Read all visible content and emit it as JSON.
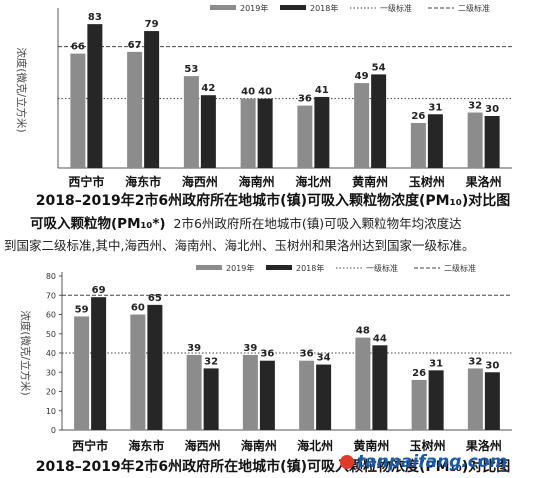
{
  "chart_data": [
    {
      "type": "bar",
      "categories": [
        "西宁市",
        "海东市",
        "海西州",
        "海南州",
        "海北州",
        "黄南州",
        "玉树州",
        "果洛州"
      ],
      "series": [
        {
          "name": "2019年",
          "values": [
            66,
            67,
            53,
            40,
            36,
            49,
            26,
            32
          ],
          "color": "#8c8c8c"
        },
        {
          "name": "2018年",
          "values": [
            83,
            79,
            42,
            40,
            41,
            54,
            31,
            30
          ],
          "color": "#262626"
        }
      ],
      "reference_lines": [
        {
          "name": "一级标准",
          "value": 40,
          "style": "dotted"
        },
        {
          "name": "二级标准",
          "value": 70,
          "style": "dashed"
        }
      ],
      "ylabel": "浓度(微克/立方米)",
      "ylim": [
        0,
        90
      ],
      "yticks": [],
      "grid": false,
      "legend": "top"
    },
    {
      "type": "bar",
      "categories": [
        "西宁市",
        "海东市",
        "海西州",
        "海南州",
        "海北州",
        "黄南州",
        "玉树州",
        "果洛州"
      ],
      "series": [
        {
          "name": "2019年",
          "values": [
            59,
            60,
            39,
            39,
            36,
            48,
            26,
            32
          ],
          "color": "#8c8c8c"
        },
        {
          "name": "2018年",
          "values": [
            69,
            65,
            32,
            36,
            34,
            44,
            31,
            30
          ],
          "color": "#262626"
        }
      ],
      "reference_lines": [
        {
          "name": "一级标准",
          "value": 40,
          "style": "dotted"
        },
        {
          "name": "二级标准",
          "value": 70,
          "style": "dashed"
        }
      ],
      "ylabel": "浓度(微克/立方米)",
      "ylim": [
        0,
        80
      ],
      "yticks": [
        0,
        10,
        20,
        30,
        40,
        50,
        60,
        70,
        80
      ],
      "grid": false,
      "legend": "top"
    }
  ],
  "captions": {
    "chart1": "2018–2019年2市6州政府所在地城市(镇)可吸入颗粒物浓度(PM₁₀)对比图",
    "chart2": "2018–2019年2市6州政府所在地城市(镇)可吸入颗粒物浓度(PM₁₀)对比图"
  },
  "paragraph": {
    "heading": "可吸入颗粒物(PM₁₀*)",
    "line1_rest": "2市6州政府所在地城市(镇)可吸入颗粒物年均浓度达",
    "line2": "到国家二级标准,其中,海西州、海南州、海北州、玉树州和果洛州达到国家一级标准。"
  },
  "watermark": {
    "text": "tanpaifang.com"
  }
}
